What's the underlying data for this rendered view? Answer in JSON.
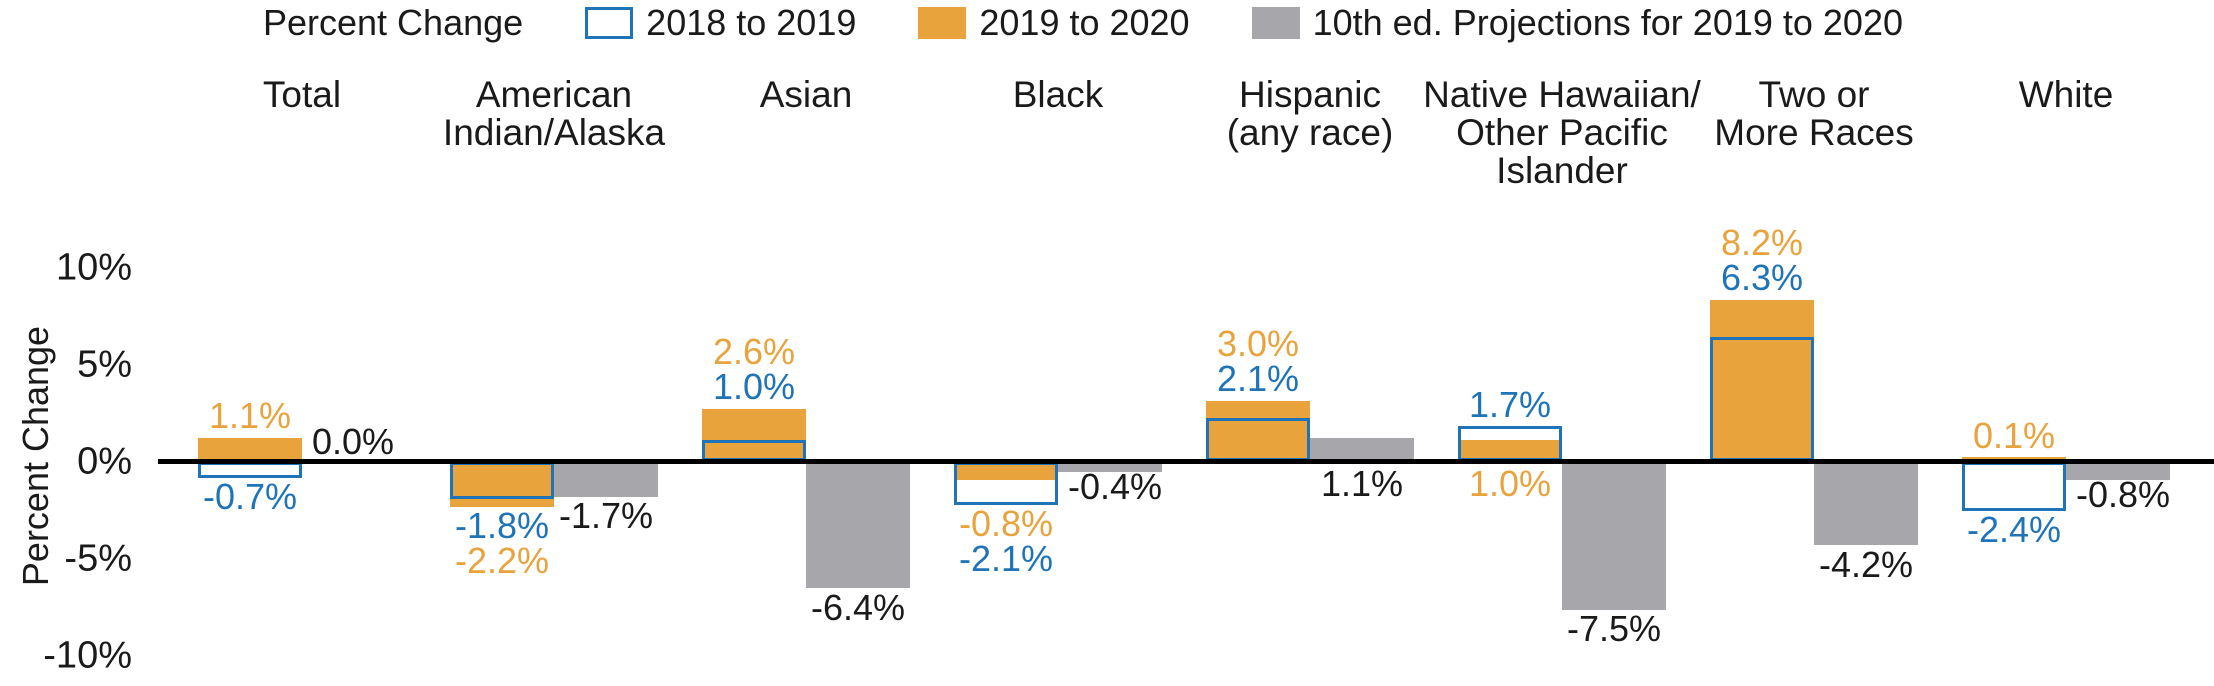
{
  "legend": {
    "title": "Percent Change",
    "items": [
      {
        "label": "2018 to 2019",
        "swatch": "outline-blue"
      },
      {
        "label": "2019 to 2020",
        "swatch": "solid-orange"
      },
      {
        "label": "10th ed. Projections for 2019 to 2020",
        "swatch": "solid-gray"
      }
    ]
  },
  "y_axis": {
    "label": "Percent Change",
    "ticks": [
      {
        "label": "10%",
        "value": 10
      },
      {
        "label": "5%",
        "value": 5
      },
      {
        "label": "0%",
        "value": 0
      },
      {
        "label": "-5%",
        "value": -5
      },
      {
        "label": "-10%",
        "value": -10
      }
    ]
  },
  "colors": {
    "orange": "#E8A33D",
    "blue": "#1F74B8",
    "gray": "#A7A7AB",
    "axis": "#000000",
    "text": "#1A1A1A"
  },
  "chart_data": {
    "type": "bar",
    "title": "",
    "xlabel": "",
    "ylabel": "Percent Change",
    "ylim": [
      -10,
      10
    ],
    "grid": false,
    "legend_position": "top",
    "categories": [
      "Total",
      "American Indian/Alaska",
      "Asian",
      "Black",
      "Hispanic (any race)",
      "Native Hawaiian/Other Pacific Islander",
      "Two or More Races",
      "White"
    ],
    "series": [
      {
        "name": "2018 to 2019",
        "style": "outline-blue",
        "values": [
          -0.7,
          -1.8,
          1.0,
          -2.1,
          2.1,
          1.7,
          6.3,
          -2.4
        ]
      },
      {
        "name": "2019 to 2020",
        "style": "solid-orange",
        "values": [
          1.1,
          -2.2,
          2.6,
          -0.8,
          3.0,
          1.0,
          8.2,
          0.1
        ]
      },
      {
        "name": "10th ed. Projections for 2019 to 2020",
        "style": "solid-gray",
        "values": [
          0.0,
          -1.7,
          -6.4,
          -0.4,
          1.1,
          -7.5,
          -4.2,
          -0.8
        ]
      }
    ],
    "groups": [
      {
        "category": "Total",
        "values": {
          "blue": -0.7,
          "orange": 1.1,
          "gray": 0.0
        },
        "value_labels": [
          {
            "series": "orange",
            "text": "1.1%",
            "place": "above",
            "row": 0
          },
          {
            "series": "blue",
            "text": "-0.7%",
            "place": "below",
            "row": 0
          },
          {
            "series": "gray",
            "text": "0.0%",
            "place": "right",
            "row": 0
          }
        ]
      },
      {
        "category": "American\nIndian/Alaska",
        "values": {
          "blue": -1.8,
          "orange": -2.2,
          "gray": -1.7
        },
        "value_labels": [
          {
            "series": "blue",
            "text": "-1.8%",
            "place": "below",
            "row": 0
          },
          {
            "series": "orange",
            "text": "-2.2%",
            "place": "below",
            "row": 1
          },
          {
            "series": "gray",
            "text": "-1.7%",
            "place": "gray_below",
            "row": 0
          }
        ]
      },
      {
        "category": "Asian",
        "values": {
          "blue": 1.0,
          "orange": 2.6,
          "gray": -6.4
        },
        "value_labels": [
          {
            "series": "orange",
            "text": "2.6%",
            "place": "above",
            "row": 1
          },
          {
            "series": "blue",
            "text": "1.0%",
            "place": "above",
            "row": 0
          },
          {
            "series": "gray",
            "text": "-6.4%",
            "place": "gray_below",
            "row": 0
          }
        ]
      },
      {
        "category": "Black",
        "values": {
          "blue": -2.1,
          "orange": -0.8,
          "gray": -0.4
        },
        "value_labels": [
          {
            "series": "orange",
            "text": "-0.8%",
            "place": "below",
            "row": 0
          },
          {
            "series": "blue",
            "text": "-2.1%",
            "place": "below",
            "row": 1
          },
          {
            "series": "gray",
            "text": "-0.4%",
            "place": "right",
            "row": 0
          }
        ]
      },
      {
        "category": "Hispanic\n(any race)",
        "values": {
          "blue": 2.1,
          "orange": 3.0,
          "gray": 1.1
        },
        "value_labels": [
          {
            "series": "orange",
            "text": "3.0%",
            "place": "above",
            "row": 1
          },
          {
            "series": "blue",
            "text": "2.1%",
            "place": "above",
            "row": 0
          },
          {
            "series": "gray",
            "text": "1.1%",
            "place": "axis_below",
            "row": 0
          }
        ]
      },
      {
        "category": "Native Hawaiian/\nOther Pacific\nIslander",
        "values": {
          "blue": 1.7,
          "orange": 1.0,
          "gray": -7.5
        },
        "value_labels": [
          {
            "series": "blue",
            "text": "1.7%",
            "place": "above",
            "row": 0
          },
          {
            "series": "orange",
            "text": "1.0%",
            "place": "axis_below",
            "row": 0
          },
          {
            "series": "gray",
            "text": "-7.5%",
            "place": "gray_below",
            "row": 0
          }
        ]
      },
      {
        "category": "Two or\nMore Races",
        "values": {
          "blue": 6.3,
          "orange": 8.2,
          "gray": -4.2
        },
        "value_labels": [
          {
            "series": "orange",
            "text": "8.2%",
            "place": "above",
            "row": 1
          },
          {
            "series": "blue",
            "text": "6.3%",
            "place": "above",
            "row": 0
          },
          {
            "series": "gray",
            "text": "-4.2%",
            "place": "gray_below",
            "row": 0
          }
        ]
      },
      {
        "category": "White",
        "values": {
          "blue": -2.4,
          "orange": 0.1,
          "gray": -0.8
        },
        "value_labels": [
          {
            "series": "orange",
            "text": "0.1%",
            "place": "above",
            "row": 0
          },
          {
            "series": "blue",
            "text": "-2.4%",
            "place": "below",
            "row": 0
          },
          {
            "series": "gray",
            "text": "-0.8%",
            "place": "right",
            "row": 0
          }
        ]
      }
    ]
  }
}
